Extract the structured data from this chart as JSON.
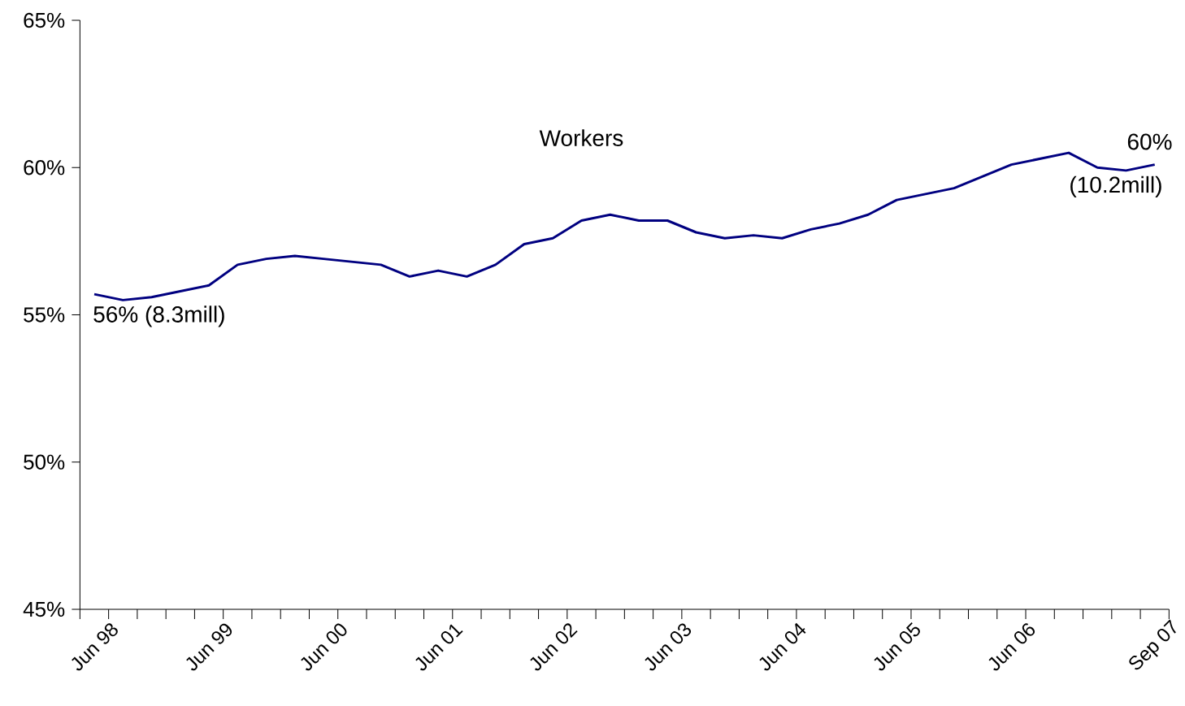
{
  "chart_data": {
    "type": "line",
    "categories": [
      "Jun 98",
      null,
      null,
      null,
      "Jun 99",
      null,
      null,
      null,
      "Jun 00",
      null,
      null,
      null,
      "Jun 01",
      null,
      null,
      null,
      "Jun 02",
      null,
      null,
      null,
      "Jun 03",
      null,
      null,
      null,
      "Jun 04",
      null,
      null,
      null,
      "Jun 05",
      null,
      null,
      null,
      "Jun 06",
      null,
      null,
      null,
      null,
      "Sep 07"
    ],
    "series": [
      {
        "name": "Workers",
        "color": "#000080",
        "values": [
          55.7,
          55.5,
          55.6,
          55.8,
          56.0,
          56.7,
          56.9,
          57.0,
          56.9,
          56.8,
          56.7,
          56.3,
          56.5,
          56.3,
          56.7,
          57.4,
          57.6,
          58.2,
          58.4,
          58.2,
          58.2,
          57.8,
          57.6,
          57.7,
          57.6,
          57.9,
          58.1,
          58.4,
          58.9,
          59.1,
          59.3,
          59.7,
          60.1,
          60.3,
          60.5,
          60.0,
          59.9,
          60.1
        ]
      }
    ],
    "ylim": [
      45,
      65
    ],
    "yticks": [
      {
        "value": 45,
        "label": "45%"
      },
      {
        "value": 50,
        "label": "50%"
      },
      {
        "value": 55,
        "label": "55%"
      },
      {
        "value": 60,
        "label": "60%"
      },
      {
        "value": 65,
        "label": "65%"
      }
    ],
    "annotations": [
      {
        "text": "56% (8.3mill)",
        "x": "Jun 98",
        "y": 55.7
      },
      {
        "text": "60%",
        "x": "Sep 07",
        "y": 60.1
      },
      {
        "text": "(10.2mill)",
        "x": "Sep 07",
        "y": 60.1
      }
    ],
    "grid": false,
    "marker": "none",
    "line_style": "solid"
  }
}
